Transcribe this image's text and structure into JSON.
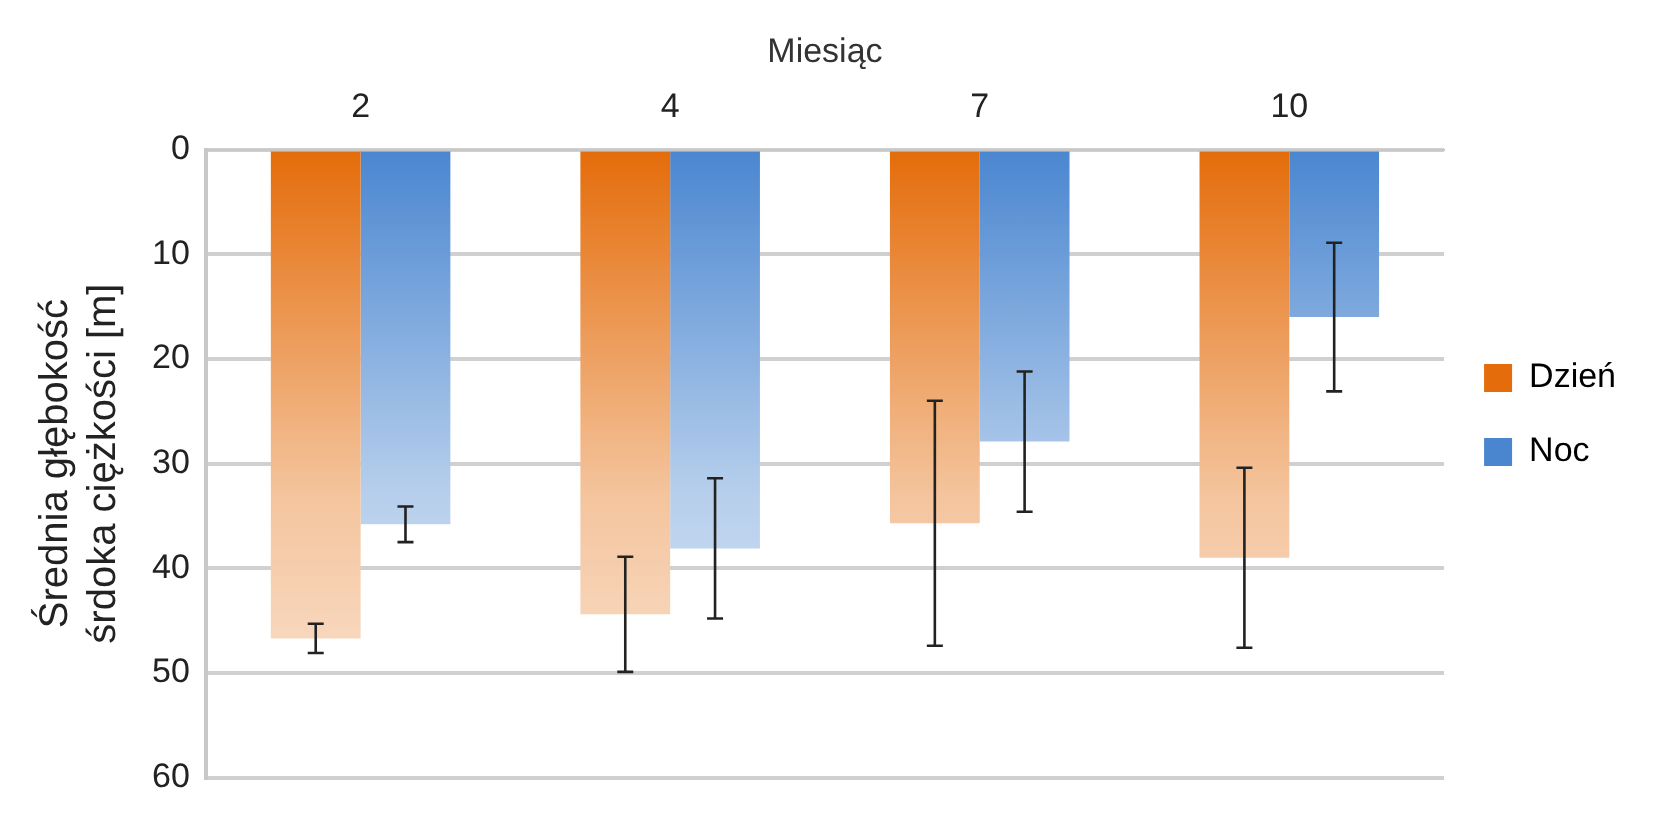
{
  "chart_data": {
    "type": "bar",
    "xlabel": "Miesiąc",
    "ylabel": "Średnia głębokość\nśrdoka ciężkości [m]",
    "categories": [
      "2",
      "4",
      "7",
      "10"
    ],
    "series": [
      {
        "name": "Dzień",
        "color": "#e46c0a",
        "values": [
          46.7,
          44.4,
          35.7,
          39.0
        ],
        "errors": [
          1.4,
          5.5,
          11.7,
          8.6
        ]
      },
      {
        "name": "Noc",
        "color": "#4a86d0",
        "values": [
          35.8,
          38.1,
          27.9,
          16.0
        ],
        "errors": [
          1.7,
          6.7,
          6.7,
          7.1
        ]
      }
    ],
    "ylim": [
      60,
      0
    ],
    "yticks": [
      0,
      10,
      20,
      30,
      40,
      50,
      60
    ],
    "grid": "y",
    "legend": "right"
  }
}
